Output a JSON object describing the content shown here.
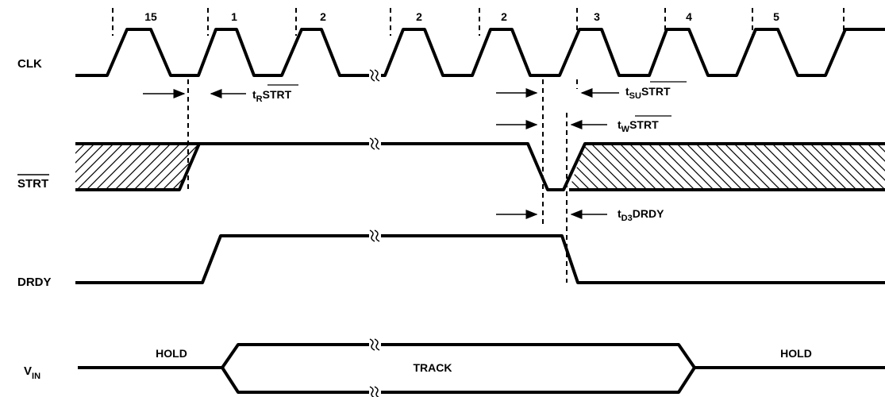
{
  "signals": {
    "clk": "CLK",
    "strt": "STRT",
    "drdy": "DRDY",
    "vin_main": "V",
    "vin_sub": "IN"
  },
  "clock_numbers": [
    "15",
    "1",
    "2",
    "2",
    "2",
    "3",
    "4",
    "5"
  ],
  "timing": {
    "tr": {
      "t": "t",
      "sub": "R",
      "main": "STRT"
    },
    "tsu": {
      "t": "t",
      "sub": "SU",
      "main": "STRT"
    },
    "tw": {
      "t": "t",
      "sub": "W",
      "main": "STRT"
    },
    "td3": {
      "t": "t",
      "sub": "D3",
      "main": "DRDY"
    }
  },
  "vin_states": {
    "hold_left": "HOLD",
    "track": "TRACK",
    "hold_right": "HOLD"
  }
}
